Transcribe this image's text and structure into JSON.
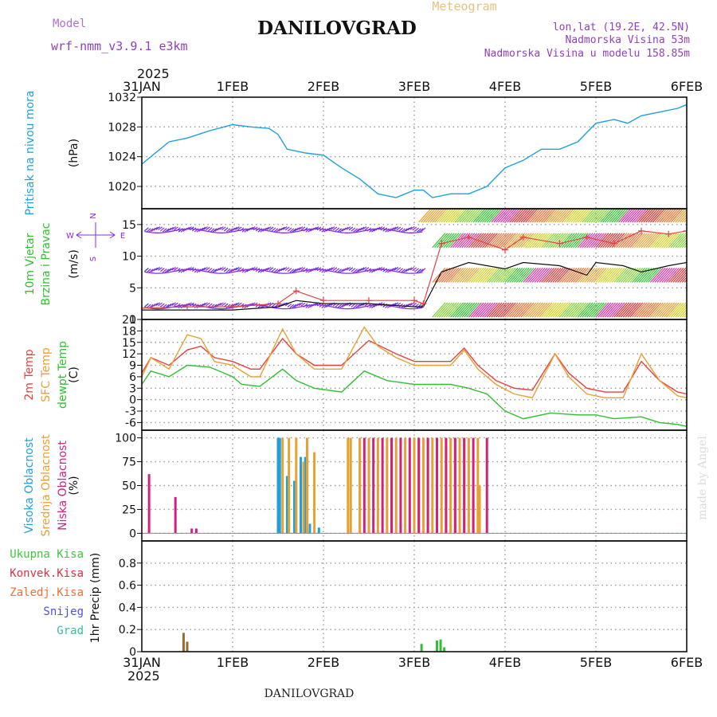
{
  "header": {
    "model_label": "Model",
    "model_name": "wrf-nmm_v3.9.1 e3km",
    "station": "DANILOVGRAD",
    "meteogram": "Meteogram",
    "lonlat": "lon,lat (19.2E, 42.5N)",
    "elevation": "Nadmorska Visina 53m",
    "model_elevation": "Nadmorska Visina u modelu 158.85m",
    "year_top": "2025",
    "year_bottom": "2025",
    "footer": "DANILOVGRAD",
    "credit": "made by Angel"
  },
  "colors": {
    "pressure": "#1fa0e0",
    "t2m": "#e84040",
    "sfc": "#e8a030",
    "dew": "#30c030",
    "high": "#1fa0e0",
    "mid": "#e8a030",
    "low": "#d02080",
    "wind_violet": "#8a2be2",
    "wind_blue": "#2040e0"
  },
  "chart_data": {
    "type": "meteogram",
    "x_domain_days": [
      0,
      6
    ],
    "dates": [
      "31JAN",
      "1FEB",
      "2FEB",
      "3FEB",
      "4FEB",
      "5FEB",
      "6FEB"
    ],
    "panels": [
      {
        "id": "pressure",
        "type": "line",
        "ylabel": "(hPa)",
        "side_labels": [
          "Pritisak na nivou mora"
        ],
        "ylim": [
          1017,
          1032
        ],
        "yticks": [
          1020,
          1024,
          1028,
          1032
        ],
        "series": [
          {
            "name": "Pritisak na nivou mora",
            "color_key": "pressure",
            "x": [
              0,
              0.1,
              0.3,
              0.5,
              0.75,
              1.0,
              1.2,
              1.4,
              1.5,
              1.6,
              1.8,
              2.0,
              2.2,
              2.4,
              2.6,
              2.8,
              3.0,
              3.1,
              3.2,
              3.4,
              3.6,
              3.8,
              4.0,
              4.2,
              4.4,
              4.6,
              4.8,
              5.0,
              5.2,
              5.35,
              5.5,
              5.7,
              5.9,
              6.0
            ],
            "y": [
              1023,
              1024,
              1026,
              1026.5,
              1027.5,
              1028.3,
              1028,
              1027.8,
              1027,
              1025,
              1024.5,
              1024.2,
              1022.5,
              1021,
              1019,
              1018.5,
              1019.5,
              1019.5,
              1018.5,
              1019,
              1019,
              1020,
              1022.5,
              1023.5,
              1025,
              1025,
              1026,
              1028.5,
              1029,
              1028.5,
              1029.5,
              1030,
              1030.5,
              1031
            ]
          }
        ]
      },
      {
        "id": "wind",
        "type": "wind_barbs",
        "ylabel": "(m/s)",
        "side_labels": [
          "10m Vjetar",
          "Brzina i Pravac"
        ],
        "ylim": [
          0,
          17.5
        ],
        "yticks": [
          0,
          5,
          10,
          15
        ],
        "direction_key": [
          "N",
          "E",
          "S",
          "W"
        ],
        "rows": [
          {
            "level": 14,
            "x_end": 3.1,
            "color_key": "wind_violet"
          },
          {
            "level": 7.6,
            "x_end": 3.1,
            "color_key": "wind_violet"
          },
          {
            "level": 2,
            "x_end": 3.1,
            "color_key": "wind_violet"
          },
          {
            "level": 16.5,
            "x_start": 3.05,
            "x_end": 6.0,
            "color_key": "mixed"
          },
          {
            "level": 12.5,
            "x_start": 3.2,
            "x_end": 6.0,
            "color_key": "mixed"
          },
          {
            "level": 7.0,
            "x_start": 3.2,
            "x_end": 6.0,
            "color_key": "mixed"
          },
          {
            "level": 1.5,
            "x_start": 3.2,
            "x_end": 6.0,
            "color_key": "mixed"
          }
        ],
        "series": [
          {
            "name": "speed",
            "color_key": "black",
            "x": [
              0,
              0.5,
              1.0,
              1.5,
              1.7,
              2.0,
              2.5,
              3.0,
              3.1,
              3.3,
              3.6,
              4.0,
              4.2,
              4.6,
              4.9,
              5.0,
              5.3,
              5.5,
              5.8,
              6.0
            ],
            "y": [
              1.5,
              1.5,
              1.5,
              2,
              3,
              2.5,
              2.5,
              2,
              2,
              7.5,
              9,
              8,
              9,
              8.5,
              7,
              9,
              8.5,
              7.5,
              8.5,
              9
            ]
          },
          {
            "name": "gust",
            "color_key": "t2m",
            "x": [
              0,
              0.5,
              1.0,
              1.5,
              1.7,
              2.0,
              2.5,
              3.0,
              3.1,
              3.3,
              3.6,
              4.0,
              4.2,
              4.6,
              4.9,
              5.2,
              5.5,
              5.8,
              6.0
            ],
            "y": [
              1.8,
              2,
              2,
              2.5,
              4.5,
              3,
              3,
              3,
              2.5,
              12,
              13,
              11,
              13,
              12,
              13,
              12,
              14,
              13.5,
              14
            ]
          }
        ]
      },
      {
        "id": "temperature",
        "type": "line",
        "ylabel": "(C)",
        "side_labels": [
          "2m Temp",
          "SFC Temp",
          "dewpt Temp"
        ],
        "ylim": [
          -8,
          21
        ],
        "yticks": [
          -6,
          -3,
          0,
          3,
          6,
          9,
          12,
          15,
          18,
          21
        ],
        "series": [
          {
            "name": "2m Temp",
            "color_key": "t2m",
            "x": [
              0,
              0.1,
              0.3,
              0.5,
              0.65,
              0.8,
              1.0,
              1.2,
              1.3,
              1.55,
              1.7,
              1.9,
              2.2,
              2.5,
              2.8,
              3.0,
              3.2,
              3.4,
              3.55,
              3.7,
              3.9,
              4.1,
              4.3,
              4.55,
              4.7,
              4.9,
              5.1,
              5.3,
              5.5,
              5.7,
              5.9,
              6.0
            ],
            "y": [
              7,
              11,
              9,
              13,
              14,
              11,
              10,
              8,
              8,
              16,
              12,
              9,
              9,
              15.5,
              12,
              10,
              10,
              10,
              13.5,
              9,
              5,
              3,
              2.5,
              12,
              7,
              3,
              2,
              2,
              10,
              5,
              2,
              1.5
            ]
          },
          {
            "name": "SFC Temp",
            "color_key": "sfc",
            "x": [
              0,
              0.1,
              0.3,
              0.5,
              0.65,
              0.8,
              1.0,
              1.2,
              1.3,
              1.55,
              1.7,
              1.9,
              2.2,
              2.45,
              2.6,
              2.8,
              3.0,
              3.2,
              3.4,
              3.55,
              3.7,
              3.9,
              4.1,
              4.3,
              4.55,
              4.7,
              4.9,
              5.1,
              5.3,
              5.5,
              5.7,
              5.9,
              6.0
            ],
            "y": [
              6,
              11,
              8,
              17,
              16,
              10,
              9,
              6,
              6,
              18.5,
              12,
              8,
              8,
              19,
              14,
              11,
              9,
              9,
              9,
              13,
              8,
              4,
              1.5,
              0.5,
              12,
              6,
              1.5,
              0.5,
              0.5,
              12,
              5,
              1,
              0.5
            ]
          },
          {
            "name": "dewpt Temp",
            "color_key": "dew",
            "x": [
              0,
              0.1,
              0.3,
              0.5,
              0.75,
              1.0,
              1.1,
              1.3,
              1.55,
              1.7,
              1.9,
              2.2,
              2.45,
              2.7,
              3.0,
              3.2,
              3.4,
              3.6,
              3.8,
              4.0,
              4.2,
              4.5,
              4.8,
              5.0,
              5.2,
              5.5,
              5.7,
              5.9,
              6.0
            ],
            "y": [
              4,
              7.5,
              6,
              9,
              8.5,
              6,
              4,
              3.5,
              8,
              5,
              3,
              2,
              7.5,
              5,
              4,
              4,
              4,
              3,
              1.5,
              -3,
              -5,
              -3.5,
              -4,
              -4,
              -5,
              -4.5,
              -6,
              -6.5,
              -7
            ]
          }
        ]
      },
      {
        "id": "cloud",
        "type": "bar",
        "ylabel": "(%)",
        "side_labels": [
          "Visoka Oblacnost",
          "Srednja Oblacnost",
          "Niska Oblacnost"
        ],
        "ylim": [
          -8,
          108
        ],
        "yticks": [
          0,
          25,
          50,
          75,
          100
        ],
        "series": [
          {
            "name": "Visoka Oblacnost",
            "color_key": "high",
            "x": [
              1.5,
              1.52,
              1.6,
              1.68,
              1.75,
              1.8,
              1.85,
              1.95
            ],
            "y": [
              100,
              100,
              60,
              55,
              80,
              80,
              10,
              6
            ]
          },
          {
            "name": "Srednja Oblacnost",
            "color_key": "mid",
            "x": [
              1.55,
              1.62,
              1.7,
              1.78,
              1.82,
              1.9,
              2.27,
              2.3,
              2.4,
              2.5,
              2.6,
              2.7,
              2.8,
              2.9,
              3.0,
              3.05,
              3.1,
              3.15,
              3.2,
              3.25,
              3.3,
              3.35,
              3.4,
              3.45,
              3.5,
              3.55,
              3.6,
              3.65,
              3.7,
              3.72
            ],
            "y": [
              100,
              100,
              100,
              75,
              100,
              85,
              100,
              100,
              100,
              100,
              100,
              100,
              100,
              100,
              100,
              100,
              100,
              100,
              100,
              100,
              100,
              100,
              100,
              100,
              100,
              100,
              100,
              35,
              100,
              50
            ]
          },
          {
            "name": "Niska Oblacnost",
            "color_key": "low",
            "x": [
              0.08,
              0.37,
              0.55,
              0.6,
              2.45,
              2.55,
              2.65,
              2.75,
              2.85,
              2.95,
              3.05,
              3.15,
              3.25,
              3.35,
              3.45,
              3.55,
              3.65,
              3.8
            ],
            "y": [
              62,
              38,
              5,
              5,
              100,
              100,
              100,
              100,
              100,
              100,
              100,
              100,
              100,
              100,
              100,
              100,
              100,
              100
            ]
          }
        ]
      },
      {
        "id": "precip",
        "type": "bar",
        "ylabel": "1hr Precip (mm)",
        "side_labels": [
          "Ukupna Kisa",
          "Konvek.Kisa",
          "Zaledj.Kisa",
          "Snijeg",
          "Grad"
        ],
        "ylim": [
          0,
          1.0
        ],
        "yticks": [
          0,
          0.2,
          0.4,
          0.6,
          0.8
        ],
        "series": [
          {
            "name": "Zaledj.Kisa",
            "color_key": "brown",
            "x": [
              0.46,
              0.5
            ],
            "y": [
              0.17,
              0.09
            ]
          },
          {
            "name": "Ukupna Kisa",
            "color_key": "dew",
            "x": [
              3.08,
              3.25,
              3.29,
              3.33
            ],
            "y": [
              0.07,
              0.1,
              0.11,
              0.04
            ]
          }
        ]
      }
    ]
  }
}
